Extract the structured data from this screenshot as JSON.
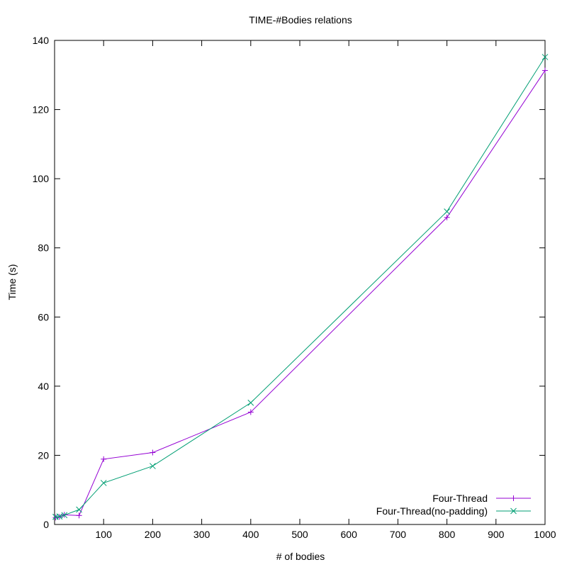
{
  "chart_data": {
    "type": "line",
    "title": "TIME-#Bodies relations",
    "xlabel": "# of bodies",
    "ylabel": "Time (s)",
    "xlim": [
      0,
      1000
    ],
    "ylim": [
      0,
      140
    ],
    "x_ticks": [
      100,
      200,
      300,
      400,
      500,
      600,
      700,
      800,
      900,
      1000
    ],
    "y_ticks": [
      0,
      20,
      40,
      60,
      80,
      100,
      120,
      140
    ],
    "grid": false,
    "legend_position": "bottom-right",
    "series": [
      {
        "name": "Four-Thread",
        "color": "#9400d3",
        "marker": "plus",
        "x": [
          2,
          10,
          20,
          50,
          100,
          200,
          400,
          800,
          1000
        ],
        "y": [
          2.0,
          2.2,
          2.8,
          2.6,
          18.9,
          20.8,
          32.5,
          88.8,
          131.3
        ]
      },
      {
        "name": "Four-Thread(no-padding)",
        "color": "#009e73",
        "marker": "cross",
        "x": [
          2,
          10,
          20,
          50,
          100,
          200,
          400,
          800,
          1000
        ],
        "y": [
          2.2,
          2.3,
          2.7,
          4.3,
          12.0,
          16.9,
          35.2,
          90.5,
          135.2
        ]
      }
    ]
  }
}
